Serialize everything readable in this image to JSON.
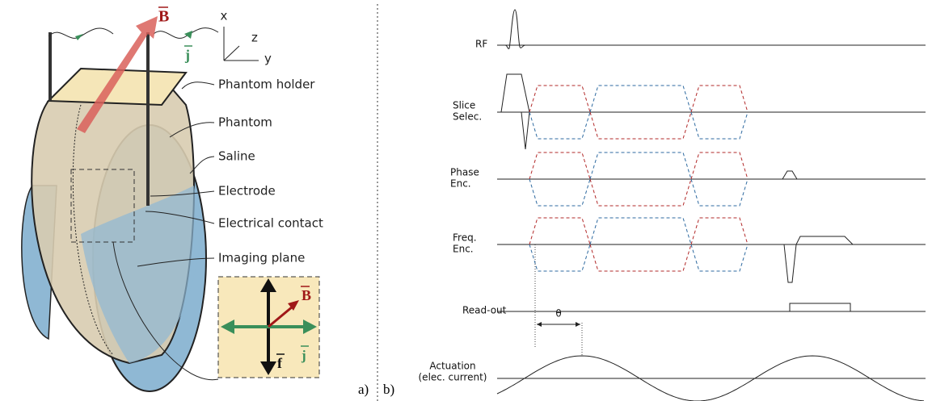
{
  "left_panel": {
    "panel_label": "a)",
    "axes": {
      "x": "x",
      "z": "z",
      "y": "y"
    },
    "vectors": {
      "B": "B",
      "j": "j"
    },
    "labels": [
      "Phantom holder",
      "Phantom",
      "Saline",
      "Electrode",
      "Electrical contact",
      "Imaging plane"
    ],
    "inset": {
      "B": "B",
      "j": "j",
      "f": "f"
    }
  },
  "right_panel": {
    "panel_label": "b)",
    "rows": [
      {
        "label_lines": [
          "RF"
        ]
      },
      {
        "label_lines": [
          "Slice",
          "Selec."
        ]
      },
      {
        "label_lines": [
          "Phase",
          "Enc."
        ]
      },
      {
        "label_lines": [
          "Freq.",
          "Enc."
        ]
      },
      {
        "label_lines": [
          "Read-out"
        ]
      },
      {
        "label_lines": [
          "Actuation",
          "(elec. current)"
        ]
      }
    ],
    "phase_offset": "θ"
  }
}
